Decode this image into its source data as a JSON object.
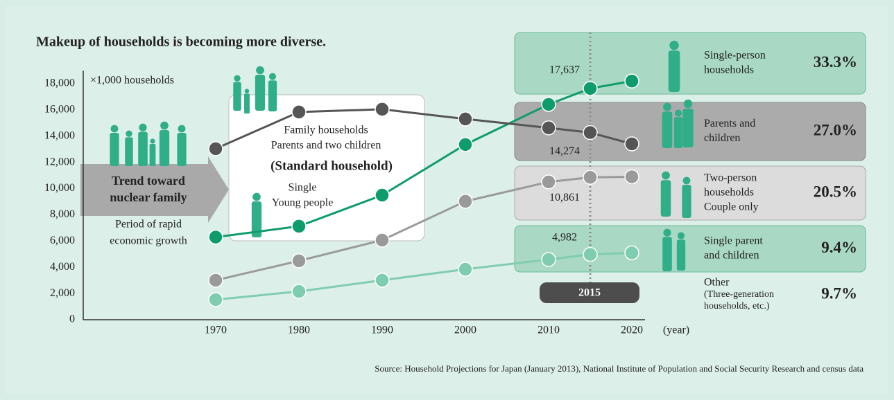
{
  "chart_data": {
    "type": "line",
    "title": "Makeup of households is becoming more diverse.",
    "y_unit": "×1,000 households",
    "x_label": "(year)",
    "source": "Source: Household Projections for Japan (January 2013), National Institute of Population and Social Security Research and census data",
    "x": [
      1970,
      1980,
      1990,
      2000,
      2010,
      2015,
      2020
    ],
    "xlim": [
      1970,
      2020
    ],
    "xticks": [
      1970,
      1980,
      1990,
      2000,
      2010,
      2020
    ],
    "ylim": [
      0,
      19000
    ],
    "yticks": [
      0,
      {
        "value": 2000,
        "label": "2,000"
      },
      {
        "value": 4000,
        "label": "4,000"
      },
      {
        "value": 6000,
        "label": "6,000"
      },
      {
        "value": 8000,
        "label": "8,000"
      },
      {
        "value": 10000,
        "label": "10,000"
      },
      {
        "value": 12000,
        "label": "12,000"
      },
      {
        "value": 14000,
        "label": "14,000"
      },
      {
        "value": 16000,
        "label": "16,000"
      },
      {
        "value": 18000,
        "label": "18,000"
      }
    ],
    "highlight_year": 2015,
    "series": [
      {
        "color": "#0f9c6c",
        "values": [
          6300,
          7130,
          9500,
          13360,
          16420,
          17637,
          18200
        ],
        "value_labels": [
          null,
          null,
          null,
          null,
          null,
          "17,637",
          null
        ]
      },
      {
        "color": "#555555",
        "values": [
          13040,
          15840,
          16050,
          15310,
          14630,
          14274,
          13410
        ],
        "value_labels": [
          null,
          null,
          null,
          null,
          null,
          "14,274",
          null
        ]
      },
      {
        "color": "#9a9a9a",
        "values": [
          3010,
          4490,
          6070,
          9030,
          10510,
          10861,
          10900
        ],
        "value_labels": [
          null,
          null,
          null,
          null,
          null,
          "10,861",
          null
        ]
      },
      {
        "color": "#7fcdb0",
        "values": [
          1530,
          2160,
          3010,
          3850,
          4590,
          4982,
          5100
        ],
        "value_labels": [
          null,
          null,
          null,
          null,
          null,
          "4,982",
          null
        ]
      }
    ],
    "breakdown": [
      {
        "name_lines": [
          "Single-person",
          "households"
        ],
        "value": 33.3,
        "label": "33.3%"
      },
      {
        "name_lines": [
          "Parents and",
          "children"
        ],
        "value": 27.0,
        "label": "27.0%"
      },
      {
        "name_lines": [
          "Two-person",
          "households",
          "Couple only"
        ],
        "value": 20.5,
        "label": "20.5%"
      },
      {
        "name_lines": [
          "Single parent",
          "and children"
        ],
        "value": 9.4,
        "label": "9.4%"
      },
      {
        "name_lines": [
          "Other",
          "(Three-generation",
          "households, etc.)"
        ],
        "value": 9.7,
        "label": "9.7%"
      }
    ],
    "annotations": {
      "trend_1": "Trend toward",
      "trend_2": "nuclear family",
      "period_1": "Period of rapid",
      "period_2": "economic growth",
      "family_1": "Family households",
      "family_2": "Parents and two children",
      "standard": "(Standard household)",
      "single_1": "Single",
      "single_2": "Young people"
    }
  }
}
